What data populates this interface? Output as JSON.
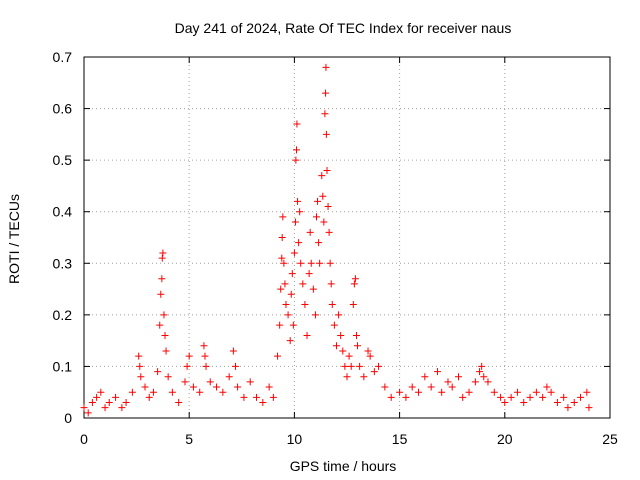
{
  "chart_data": {
    "type": "scatter",
    "title": "Day 241 of 2024, Rate Of TEC Index for receiver naus",
    "xlabel": "GPS time / hours",
    "ylabel": "ROTI / TECUs",
    "xlim": [
      0,
      25
    ],
    "ylim": [
      0,
      0.7
    ],
    "xticks": [
      "0",
      "5",
      "10",
      "15",
      "20",
      "25"
    ],
    "yticks": [
      "0",
      "0.1",
      "0.2",
      "0.3",
      "0.4",
      "0.5",
      "0.6",
      "0.7"
    ],
    "grid": true,
    "marker": "+",
    "color": "#ff0000",
    "series": [
      {
        "points": [
          [
            0.0,
            0.02
          ],
          [
            0.2,
            0.01
          ],
          [
            0.4,
            0.03
          ],
          [
            0.6,
            0.04
          ],
          [
            0.8,
            0.05
          ],
          [
            1.0,
            0.02
          ],
          [
            1.2,
            0.03
          ],
          [
            1.5,
            0.04
          ],
          [
            1.8,
            0.02
          ],
          [
            2.0,
            0.03
          ],
          [
            2.3,
            0.05
          ],
          [
            2.6,
            0.12
          ],
          [
            2.65,
            0.1
          ],
          [
            2.7,
            0.08
          ],
          [
            2.9,
            0.06
          ],
          [
            3.1,
            0.04
          ],
          [
            3.3,
            0.05
          ],
          [
            3.5,
            0.09
          ],
          [
            3.6,
            0.18
          ],
          [
            3.65,
            0.24
          ],
          [
            3.7,
            0.27
          ],
          [
            3.72,
            0.31
          ],
          [
            3.75,
            0.32
          ],
          [
            3.8,
            0.2
          ],
          [
            3.85,
            0.16
          ],
          [
            3.9,
            0.13
          ],
          [
            4.0,
            0.08
          ],
          [
            4.2,
            0.05
          ],
          [
            4.5,
            0.03
          ],
          [
            4.8,
            0.07
          ],
          [
            4.9,
            0.1
          ],
          [
            5.0,
            0.12
          ],
          [
            5.2,
            0.06
          ],
          [
            5.5,
            0.05
          ],
          [
            5.7,
            0.14
          ],
          [
            5.75,
            0.12
          ],
          [
            5.8,
            0.1
          ],
          [
            6.0,
            0.07
          ],
          [
            6.3,
            0.06
          ],
          [
            6.6,
            0.05
          ],
          [
            6.9,
            0.08
          ],
          [
            7.1,
            0.13
          ],
          [
            7.2,
            0.1
          ],
          [
            7.3,
            0.06
          ],
          [
            7.6,
            0.04
          ],
          [
            7.9,
            0.07
          ],
          [
            8.2,
            0.04
          ],
          [
            8.5,
            0.03
          ],
          [
            8.8,
            0.06
          ],
          [
            9.0,
            0.04
          ],
          [
            9.2,
            0.12
          ],
          [
            9.3,
            0.18
          ],
          [
            9.35,
            0.25
          ],
          [
            9.4,
            0.31
          ],
          [
            9.42,
            0.35
          ],
          [
            9.45,
            0.39
          ],
          [
            9.5,
            0.3
          ],
          [
            9.55,
            0.26
          ],
          [
            9.6,
            0.22
          ],
          [
            9.7,
            0.2
          ],
          [
            9.8,
            0.15
          ],
          [
            9.85,
            0.24
          ],
          [
            9.9,
            0.28
          ],
          [
            9.95,
            0.18
          ],
          [
            10.0,
            0.32
          ],
          [
            10.05,
            0.38
          ],
          [
            10.07,
            0.5
          ],
          [
            10.1,
            0.52
          ],
          [
            10.12,
            0.57
          ],
          [
            10.15,
            0.42
          ],
          [
            10.2,
            0.34
          ],
          [
            10.25,
            0.4
          ],
          [
            10.3,
            0.3
          ],
          [
            10.4,
            0.26
          ],
          [
            10.5,
            0.22
          ],
          [
            10.6,
            0.16
          ],
          [
            10.7,
            0.28
          ],
          [
            10.75,
            0.36
          ],
          [
            10.8,
            0.3
          ],
          [
            10.9,
            0.25
          ],
          [
            11.0,
            0.2
          ],
          [
            11.05,
            0.39
          ],
          [
            11.1,
            0.42
          ],
          [
            11.15,
            0.34
          ],
          [
            11.2,
            0.3
          ],
          [
            11.3,
            0.47
          ],
          [
            11.35,
            0.43
          ],
          [
            11.4,
            0.38
          ],
          [
            11.45,
            0.59
          ],
          [
            11.48,
            0.63
          ],
          [
            11.5,
            0.68
          ],
          [
            11.52,
            0.55
          ],
          [
            11.55,
            0.48
          ],
          [
            11.6,
            0.41
          ],
          [
            11.65,
            0.36
          ],
          [
            11.7,
            0.3
          ],
          [
            11.75,
            0.26
          ],
          [
            11.8,
            0.22
          ],
          [
            11.9,
            0.18
          ],
          [
            12.0,
            0.14
          ],
          [
            12.1,
            0.2
          ],
          [
            12.2,
            0.16
          ],
          [
            12.3,
            0.13
          ],
          [
            12.4,
            0.1
          ],
          [
            12.5,
            0.08
          ],
          [
            12.6,
            0.12
          ],
          [
            12.7,
            0.1
          ],
          [
            12.8,
            0.22
          ],
          [
            12.85,
            0.26
          ],
          [
            12.9,
            0.27
          ],
          [
            12.95,
            0.16
          ],
          [
            13.0,
            0.14
          ],
          [
            13.1,
            0.1
          ],
          [
            13.3,
            0.08
          ],
          [
            13.5,
            0.13
          ],
          [
            13.6,
            0.12
          ],
          [
            13.8,
            0.09
          ],
          [
            14.0,
            0.1
          ],
          [
            14.3,
            0.06
          ],
          [
            14.6,
            0.04
          ],
          [
            15.0,
            0.05
          ],
          [
            15.3,
            0.04
          ],
          [
            15.6,
            0.06
          ],
          [
            15.9,
            0.05
          ],
          [
            16.2,
            0.08
          ],
          [
            16.5,
            0.06
          ],
          [
            16.8,
            0.09
          ],
          [
            17.0,
            0.05
          ],
          [
            17.3,
            0.07
          ],
          [
            17.5,
            0.06
          ],
          [
            17.8,
            0.08
          ],
          [
            18.0,
            0.04
          ],
          [
            18.3,
            0.05
          ],
          [
            18.6,
            0.07
          ],
          [
            18.8,
            0.09
          ],
          [
            18.9,
            0.1
          ],
          [
            19.0,
            0.08
          ],
          [
            19.2,
            0.07
          ],
          [
            19.5,
            0.05
          ],
          [
            19.8,
            0.04
          ],
          [
            20.0,
            0.03
          ],
          [
            20.3,
            0.04
          ],
          [
            20.6,
            0.05
          ],
          [
            20.9,
            0.03
          ],
          [
            21.2,
            0.04
          ],
          [
            21.5,
            0.05
          ],
          [
            21.8,
            0.04
          ],
          [
            22.0,
            0.06
          ],
          [
            22.2,
            0.05
          ],
          [
            22.5,
            0.03
          ],
          [
            22.8,
            0.04
          ],
          [
            23.0,
            0.02
          ],
          [
            23.3,
            0.03
          ],
          [
            23.6,
            0.04
          ],
          [
            23.9,
            0.05
          ],
          [
            24.0,
            0.02
          ]
        ]
      }
    ]
  }
}
